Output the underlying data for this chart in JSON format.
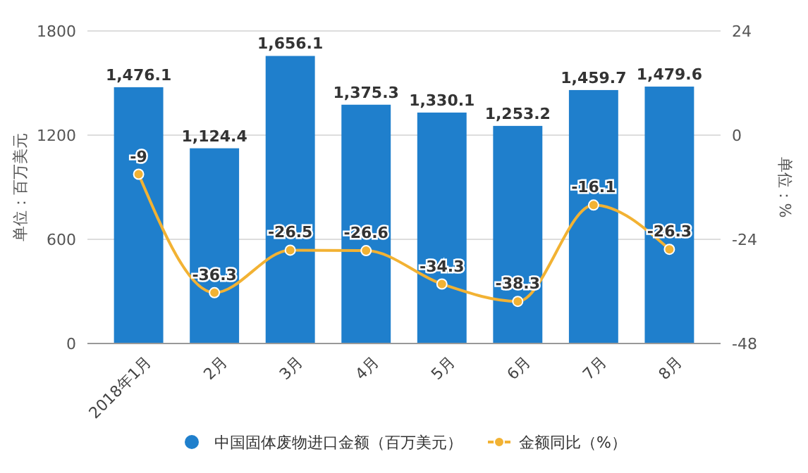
{
  "chart_data": {
    "type": "bar",
    "ylabel": "单位：百万美元",
    "y2label": "单位：%",
    "categories": [
      "2018年1月",
      "2月",
      "3月",
      "4月",
      "5月",
      "6月",
      "7月",
      "8月"
    ],
    "series": [
      {
        "name": "中国固体废物进口金额（百万美元）",
        "color": "#1f7fcc",
        "values": [
          1476.1,
          1124.4,
          1656.1,
          1375.3,
          1330.1,
          1253.2,
          1459.7,
          1479.6
        ],
        "value_labels": [
          "1,476.1",
          "1,124.4",
          "1,656.1",
          "1,375.3",
          "1,330.1",
          "1,253.2",
          "1,459.7",
          "1,479.6"
        ]
      },
      {
        "name": "金额同比（%）",
        "type": "line",
        "axis": "y2",
        "color": "#f2b233",
        "values": [
          -9,
          -36.3,
          -26.5,
          -26.6,
          -34.3,
          -38.3,
          -16.1,
          -26.3
        ],
        "value_labels": [
          "-9",
          "-36.3",
          "-26.5",
          "-26.6",
          "-34.3",
          "-38.3",
          "-16.1",
          "-26.3"
        ]
      }
    ],
    "ylim": [
      0,
      1800
    ],
    "yticks": [
      0,
      600,
      1200,
      1800
    ],
    "y2lim": [
      -48,
      24
    ],
    "y2ticks": [
      -48,
      -24,
      0,
      24
    ],
    "grid": "y",
    "legend": "bottom",
    "marker": "circle"
  }
}
